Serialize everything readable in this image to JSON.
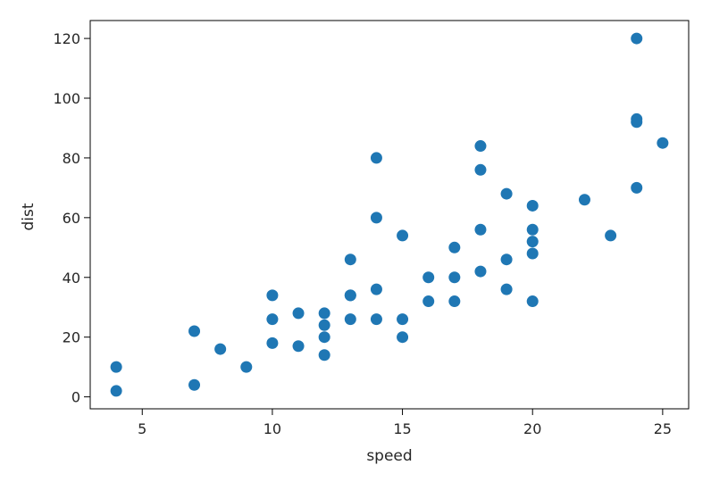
{
  "chart_data": {
    "type": "scatter",
    "title": "",
    "xlabel": "speed",
    "ylabel": "dist",
    "xlim": [
      3.0,
      26.0
    ],
    "ylim": [
      -4,
      126
    ],
    "xticks": [
      5,
      10,
      15,
      20,
      25
    ],
    "yticks": [
      0,
      20,
      40,
      60,
      80,
      100,
      120
    ],
    "grid": false,
    "marker_color": "#1f77b4",
    "points": [
      {
        "x": 4,
        "y": 2
      },
      {
        "x": 4,
        "y": 10
      },
      {
        "x": 7,
        "y": 4
      },
      {
        "x": 7,
        "y": 22
      },
      {
        "x": 8,
        "y": 16
      },
      {
        "x": 9,
        "y": 10
      },
      {
        "x": 10,
        "y": 18
      },
      {
        "x": 10,
        "y": 26
      },
      {
        "x": 10,
        "y": 34
      },
      {
        "x": 11,
        "y": 17
      },
      {
        "x": 11,
        "y": 28
      },
      {
        "x": 12,
        "y": 14
      },
      {
        "x": 12,
        "y": 20
      },
      {
        "x": 12,
        "y": 24
      },
      {
        "x": 12,
        "y": 28
      },
      {
        "x": 13,
        "y": 26
      },
      {
        "x": 13,
        "y": 34
      },
      {
        "x": 13,
        "y": 34
      },
      {
        "x": 13,
        "y": 46
      },
      {
        "x": 14,
        "y": 26
      },
      {
        "x": 14,
        "y": 36
      },
      {
        "x": 14,
        "y": 60
      },
      {
        "x": 14,
        "y": 80
      },
      {
        "x": 15,
        "y": 20
      },
      {
        "x": 15,
        "y": 26
      },
      {
        "x": 15,
        "y": 54
      },
      {
        "x": 16,
        "y": 32
      },
      {
        "x": 16,
        "y": 40
      },
      {
        "x": 17,
        "y": 32
      },
      {
        "x": 17,
        "y": 40
      },
      {
        "x": 17,
        "y": 50
      },
      {
        "x": 18,
        "y": 42
      },
      {
        "x": 18,
        "y": 56
      },
      {
        "x": 18,
        "y": 76
      },
      {
        "x": 18,
        "y": 84
      },
      {
        "x": 19,
        "y": 36
      },
      {
        "x": 19,
        "y": 46
      },
      {
        "x": 19,
        "y": 68
      },
      {
        "x": 20,
        "y": 32
      },
      {
        "x": 20,
        "y": 48
      },
      {
        "x": 20,
        "y": 52
      },
      {
        "x": 20,
        "y": 56
      },
      {
        "x": 20,
        "y": 64
      },
      {
        "x": 22,
        "y": 66
      },
      {
        "x": 23,
        "y": 54
      },
      {
        "x": 24,
        "y": 70
      },
      {
        "x": 24,
        "y": 92
      },
      {
        "x": 24,
        "y": 93
      },
      {
        "x": 24,
        "y": 120
      },
      {
        "x": 25,
        "y": 85
      }
    ]
  }
}
